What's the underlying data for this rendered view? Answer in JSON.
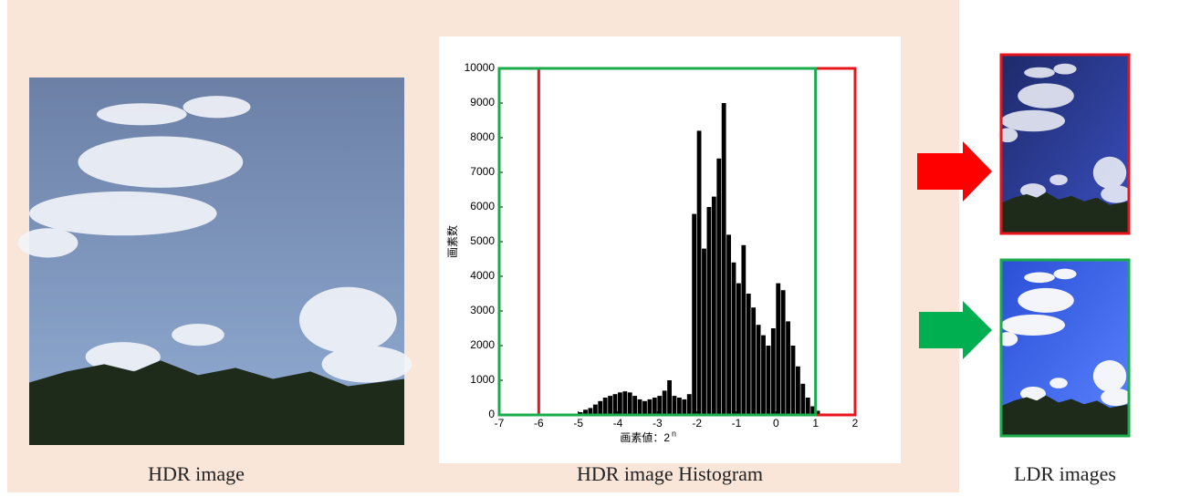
{
  "left": {
    "caption": "HDR image"
  },
  "histogram": {
    "caption": "HDR image Histogram",
    "type": "histogram",
    "ylabel": "画素数",
    "xlabel": "画素値：2",
    "xlabel_sup": "n",
    "xlim": [
      -7,
      2
    ],
    "xticks": [
      -7,
      -6,
      -5,
      -4,
      -3,
      -2,
      -1,
      0,
      1,
      2
    ],
    "ylim": [
      0,
      10000
    ],
    "yticks": [
      0,
      1000,
      2000,
      3000,
      4000,
      5000,
      6000,
      7000,
      8000,
      9000,
      10000
    ],
    "color": "#000000",
    "bins": [
      -5,
      -4.875,
      -4.75,
      -4.625,
      -4.5,
      -4.375,
      -4.25,
      -4.125,
      -4,
      -3.875,
      -3.75,
      -3.625,
      -3.5,
      -3.375,
      -3.25,
      -3.125,
      -3,
      -2.875,
      -2.75,
      -2.625,
      -2.5,
      -2.375,
      -2.25,
      -2.125,
      -2,
      -1.875,
      -1.75,
      -1.625,
      -1.5,
      -1.375,
      -1.25,
      -1.125,
      -1,
      -0.875,
      -0.75,
      -0.625,
      -0.5,
      -0.375,
      -0.25,
      -0.125,
      0,
      0.125,
      0.25,
      0.375,
      0.5,
      0.625,
      0.75,
      0.875,
      1,
      1.125,
      1.25
    ],
    "counts": [
      80,
      150,
      200,
      300,
      400,
      500,
      550,
      600,
      650,
      680,
      650,
      550,
      450,
      400,
      450,
      500,
      550,
      700,
      1000,
      550,
      500,
      450,
      600,
      5800,
      8200,
      4800,
      6000,
      6300,
      7400,
      9000,
      5200,
      4400,
      3800,
      4900,
      3500,
      3100,
      2600,
      2300,
      2000,
      2500,
      3800,
      3600,
      2700,
      2000,
      1400,
      900,
      500,
      250,
      120,
      40
    ],
    "ranges": [
      {
        "color": "#e8141b",
        "xlim": [
          -6,
          2
        ]
      },
      {
        "color": "#1aab4b",
        "xlim": [
          -7,
          1
        ]
      }
    ]
  },
  "right": {
    "caption": "LDR images"
  }
}
